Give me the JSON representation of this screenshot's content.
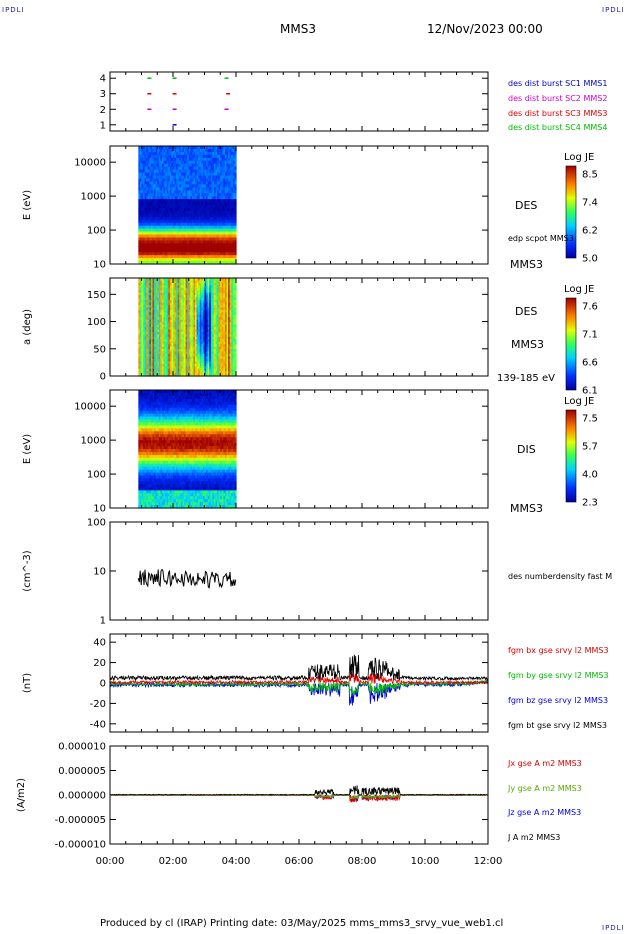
{
  "header": {
    "corner_left": "IPDLI",
    "corner_right": "IPDLI",
    "corner_bottom_right": "IPDLI",
    "spacecraft": "MMS3",
    "date": "12/Nov/2023 00:00"
  },
  "footer": {
    "text": "Produced by cl (IRAP)   Printing date: 03/May/2025   mms_mms3_srvy_vue_web1.cl"
  },
  "chart_data": [
    {
      "type": "scatter",
      "name": "burst-availability",
      "yticks": [
        "1",
        "2",
        "3",
        "4"
      ],
      "ylim": [
        0.6,
        4.4
      ],
      "legend": [
        {
          "label": "des dist burst SC1 MMS1",
          "color": "#0000cc"
        },
        {
          "label": "des dist burst SC2 MMS2",
          "color": "#cc00cc"
        },
        {
          "label": "des dist burst SC3 MMS3",
          "color": "#dd0000"
        },
        {
          "label": "des dist burst SC4 MMS4",
          "color": "#00bb00"
        }
      ],
      "points": [
        {
          "t": 1.25,
          "sc": 4,
          "color": "#00bb00"
        },
        {
          "t": 2.05,
          "sc": 4,
          "color": "#00bb00"
        },
        {
          "t": 3.7,
          "sc": 4,
          "color": "#00bb00"
        },
        {
          "t": 1.25,
          "sc": 3,
          "color": "#dd0000"
        },
        {
          "t": 2.05,
          "sc": 3,
          "color": "#dd0000"
        },
        {
          "t": 3.75,
          "sc": 3,
          "color": "#dd0000"
        },
        {
          "t": 1.25,
          "sc": 2,
          "color": "#cc00cc"
        },
        {
          "t": 2.05,
          "sc": 2,
          "color": "#cc00cc"
        },
        {
          "t": 3.7,
          "sc": 2,
          "color": "#cc00cc"
        },
        {
          "t": 2.05,
          "sc": 1,
          "color": "#0000cc"
        }
      ]
    },
    {
      "type": "heatmap",
      "name": "des-energy-spectrogram",
      "ylabel": "E (eV)",
      "yscale": "log",
      "ylim": [
        10,
        30000
      ],
      "yticks": [
        "10",
        "100",
        "1000",
        "10000"
      ],
      "data_interval": [
        0.9,
        4.0
      ],
      "colorbar": {
        "title": "Log JE",
        "ticks": [
          "8.5",
          "7.4",
          "6.2",
          "5.0"
        ]
      },
      "labels": [
        "DES",
        "edp scpot MMS3",
        "MMS3"
      ]
    },
    {
      "type": "heatmap",
      "name": "des-pitch-angle",
      "ylabel": "a (deg)",
      "ylim": [
        0,
        180
      ],
      "yticks": [
        "0",
        "50",
        "100",
        "150"
      ],
      "data_interval": [
        0.9,
        4.0
      ],
      "colorbar": {
        "title": "Log JE",
        "ticks": [
          "7.6",
          "7.1",
          "6.6",
          "6.1"
        ]
      },
      "labels": [
        "DES",
        "MMS3",
        "139-185 eV"
      ]
    },
    {
      "type": "heatmap",
      "name": "dis-energy-spectrogram",
      "ylabel": "E (eV)",
      "yscale": "log",
      "ylim": [
        10,
        30000
      ],
      "yticks": [
        "10",
        "100",
        "1000",
        "10000"
      ],
      "data_interval": [
        0.9,
        4.0
      ],
      "colorbar": {
        "title": "Log JE",
        "ticks": [
          "7.5",
          "5.7",
          "4.0",
          "2.3"
        ]
      },
      "labels": [
        "DIS",
        "MMS3"
      ]
    },
    {
      "type": "line",
      "name": "number-density",
      "ylabel": "(cm^-3)",
      "yscale": "log",
      "ylim": [
        1,
        100
      ],
      "yticks": [
        "1",
        "10",
        "100"
      ],
      "data_interval": [
        0.9,
        4.0
      ],
      "legend": [
        {
          "label": "des numberdensity fast M",
          "color": "#000000"
        }
      ]
    },
    {
      "type": "line",
      "name": "magnetic-field",
      "ylabel": "(nT)",
      "ylim": [
        -48,
        48
      ],
      "yticks": [
        "-40",
        "-20",
        "0",
        "20",
        "40"
      ],
      "legend": [
        {
          "label": "fgm bx gse srvy l2 MMS3",
          "color": "#dd0000"
        },
        {
          "label": "fgm by gse srvy l2 MMS3",
          "color": "#00bb00"
        },
        {
          "label": "fgm bz gse srvy l2 MMS3",
          "color": "#0000dd"
        },
        {
          "label": "fgm bt gse srvy l2 MMS3",
          "color": "#000000"
        }
      ]
    },
    {
      "type": "line",
      "name": "current-density",
      "ylabel": "(A/m2)",
      "ylim": [
        -1e-05,
        1e-05
      ],
      "yticks": [
        "-0.000010",
        "-0.000005",
        "0.000000",
        "0.000005",
        "0.000010"
      ],
      "legend": [
        {
          "label": "Jx gse A m2 MMS3",
          "color": "#dd0000"
        },
        {
          "label": "Jy gse A m2 MMS3",
          "color": "#55aa00"
        },
        {
          "label": "Jz gse A m2 MMS3",
          "color": "#0000dd"
        },
        {
          "label": "J A m2 MMS3",
          "color": "#000000"
        }
      ]
    }
  ],
  "xaxis": {
    "tick_labels": [
      "00:00",
      "02:00",
      "04:00",
      "06:00",
      "08:00",
      "10:00",
      "12:00"
    ],
    "xlim": [
      0,
      12
    ]
  }
}
